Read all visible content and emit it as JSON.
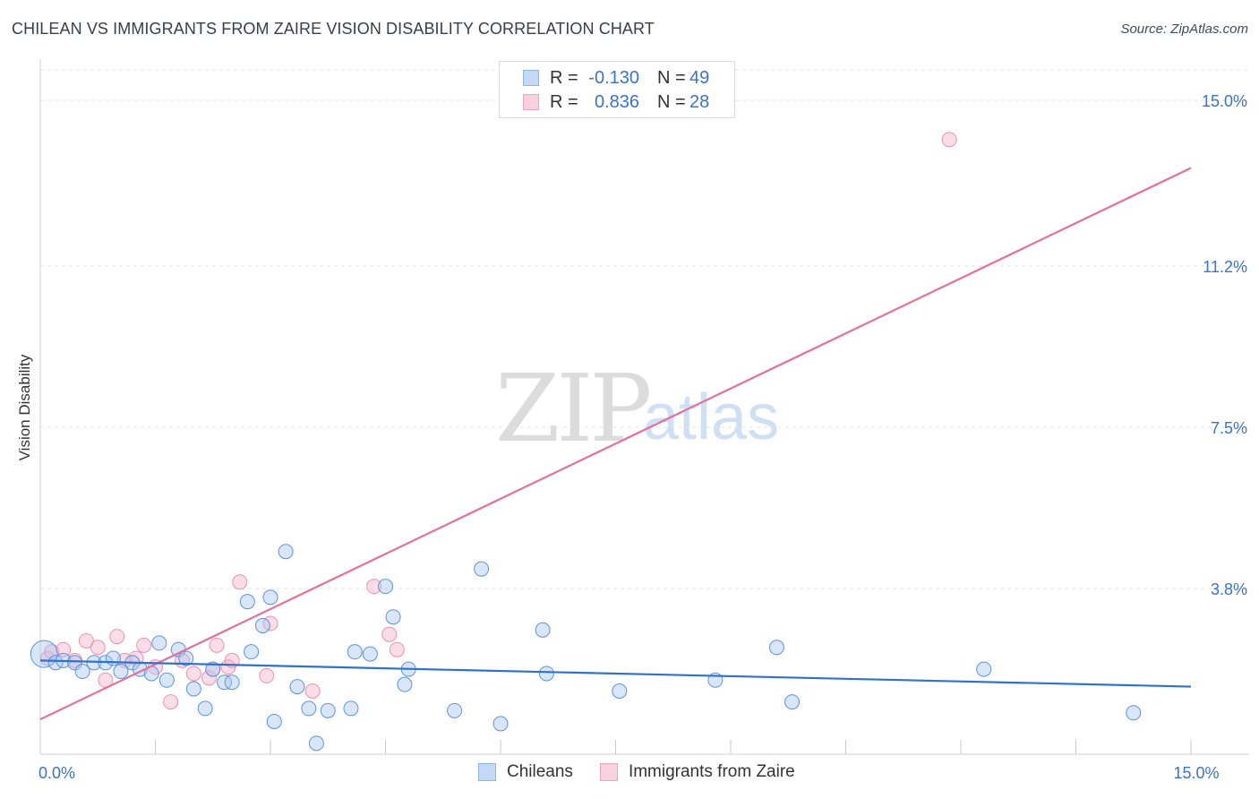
{
  "header": {
    "title": "CHILEAN VS IMMIGRANTS FROM ZAIRE VISION DISABILITY CORRELATION CHART",
    "source": "Source: ZipAtlas.com"
  },
  "watermark": {
    "zip": "ZIP",
    "atlas": "atlas"
  },
  "legend_top": [
    {
      "r_label": "R =",
      "r_value": "-0.130",
      "n_label": "N =",
      "n_value": "49"
    },
    {
      "r_label": "R =",
      "r_value": "0.836",
      "n_label": "N =",
      "n_value": "28"
    }
  ],
  "legend_bottom": [
    {
      "label": "Chileans"
    },
    {
      "label": "Immigrants from Zaire"
    }
  ],
  "chart_data": {
    "type": "scatter",
    "title": "CHILEAN VS IMMIGRANTS FROM ZAIRE VISION DISABILITY CORRELATION CHART",
    "xlabel": "",
    "ylabel": "Vision Disability",
    "xlim": [
      0,
      15
    ],
    "ylim": [
      0,
      15.7
    ],
    "x_tick_labels": [
      {
        "value": 0,
        "label": "0.0%"
      },
      {
        "value": 15,
        "label": "15.0%"
      }
    ],
    "y_ticks": [
      {
        "value": 3.8,
        "label": "3.8%"
      },
      {
        "value": 7.5,
        "label": "7.5%"
      },
      {
        "value": 11.2,
        "label": "11.2%"
      },
      {
        "value": 15.0,
        "label": "15.0%"
      }
    ],
    "x_minor_ticks": [
      1.5,
      3.0,
      4.5,
      6.0,
      7.5,
      9.0,
      10.5,
      12.0,
      13.5
    ],
    "grid": true,
    "colors": {
      "chileans": "#5b93e0",
      "zaire": "#ef8fb0",
      "chileans_line": "#2f72cc",
      "zaire_line": "#e5709a",
      "tick_label": "#3b73c6"
    },
    "series": [
      {
        "name": "Chileans",
        "r": -0.13,
        "n": 49,
        "trend": {
          "x": [
            0,
            15
          ],
          "y": [
            2.15,
            1.55
          ]
        },
        "points": [
          [
            0.05,
            2.3,
            "large"
          ],
          [
            0.2,
            2.1
          ],
          [
            0.3,
            2.15
          ],
          [
            0.45,
            2.1
          ],
          [
            0.55,
            1.9
          ],
          [
            0.7,
            2.1
          ],
          [
            0.85,
            2.1
          ],
          [
            0.95,
            2.2
          ],
          [
            1.05,
            1.9
          ],
          [
            1.2,
            2.1
          ],
          [
            1.3,
            1.95
          ],
          [
            1.45,
            1.85
          ],
          [
            1.55,
            2.55
          ],
          [
            1.65,
            1.7
          ],
          [
            1.8,
            2.4
          ],
          [
            1.9,
            2.2
          ],
          [
            2.0,
            1.5
          ],
          [
            2.15,
            1.05
          ],
          [
            2.25,
            1.95
          ],
          [
            2.4,
            1.65
          ],
          [
            2.5,
            1.65
          ],
          [
            2.7,
            3.5
          ],
          [
            2.75,
            2.35
          ],
          [
            2.9,
            2.95
          ],
          [
            3.0,
            3.6
          ],
          [
            3.05,
            0.75
          ],
          [
            3.2,
            4.65
          ],
          [
            3.35,
            1.55
          ],
          [
            3.5,
            1.05
          ],
          [
            3.6,
            0.25
          ],
          [
            3.75,
            1.0
          ],
          [
            4.05,
            1.05
          ],
          [
            4.1,
            2.35
          ],
          [
            4.3,
            2.3
          ],
          [
            4.5,
            3.85
          ],
          [
            4.6,
            3.15
          ],
          [
            4.75,
            1.6
          ],
          [
            4.8,
            1.95
          ],
          [
            5.4,
            1.0
          ],
          [
            5.75,
            4.25
          ],
          [
            6.0,
            0.7
          ],
          [
            6.55,
            2.85
          ],
          [
            6.6,
            1.85
          ],
          [
            7.55,
            1.45
          ],
          [
            8.8,
            1.7
          ],
          [
            9.6,
            2.45
          ],
          [
            9.8,
            1.2
          ],
          [
            12.3,
            1.95
          ],
          [
            14.25,
            0.95
          ]
        ]
      },
      {
        "name": "Immigrants from Zaire",
        "r": 0.836,
        "n": 28,
        "trend": {
          "x": [
            0,
            15
          ],
          "y": [
            0.8,
            13.45
          ]
        },
        "points": [
          [
            0.1,
            2.2
          ],
          [
            0.15,
            2.35
          ],
          [
            0.3,
            2.4
          ],
          [
            0.45,
            2.15
          ],
          [
            0.6,
            2.6
          ],
          [
            0.75,
            2.45
          ],
          [
            0.85,
            1.7
          ],
          [
            1.0,
            2.7
          ],
          [
            1.1,
            2.15
          ],
          [
            1.25,
            2.2
          ],
          [
            1.35,
            2.5
          ],
          [
            1.5,
            2.0
          ],
          [
            1.7,
            1.2
          ],
          [
            1.85,
            2.15
          ],
          [
            2.0,
            1.85
          ],
          [
            2.2,
            1.75
          ],
          [
            2.3,
            2.5
          ],
          [
            2.45,
            2.0
          ],
          [
            2.5,
            2.15
          ],
          [
            2.6,
            3.95
          ],
          [
            2.95,
            1.8
          ],
          [
            3.0,
            3.0
          ],
          [
            3.55,
            1.45
          ],
          [
            4.35,
            3.85
          ],
          [
            4.55,
            2.75
          ],
          [
            4.65,
            2.4
          ],
          [
            11.85,
            14.1
          ],
          [
            2.25,
            1.95
          ]
        ]
      }
    ]
  }
}
